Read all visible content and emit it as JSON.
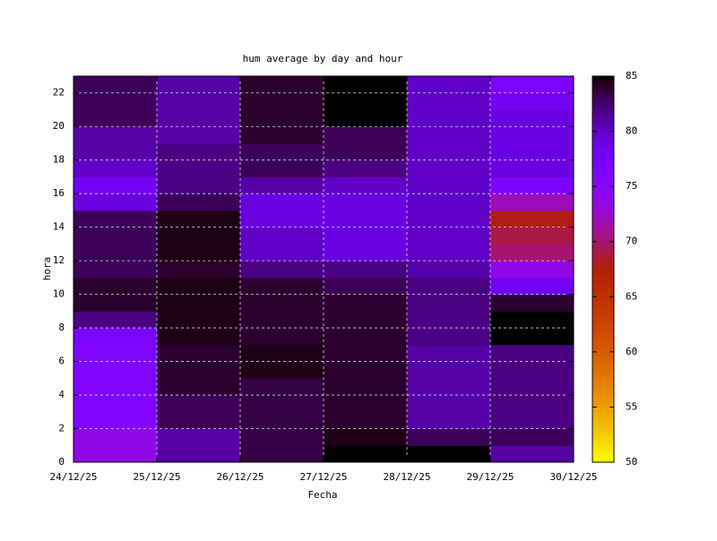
{
  "chart_data": {
    "type": "heatmap",
    "title": "hum average by day and hour",
    "xlabel": "Fecha",
    "ylabel": "hora",
    "xticks": [
      "24/12/25",
      "25/12/25",
      "26/12/25",
      "27/12/25",
      "28/12/25",
      "29/12/25",
      "30/12/25"
    ],
    "y": [
      0,
      1,
      2,
      3,
      4,
      5,
      6,
      7,
      8,
      9,
      10,
      11,
      12,
      13,
      14,
      15,
      16,
      17,
      18,
      19,
      20,
      21,
      22
    ],
    "ylim": [
      0,
      23
    ],
    "yticks": [
      0,
      2,
      4,
      6,
      8,
      10,
      12,
      14,
      16,
      18,
      20,
      22
    ],
    "z": [
      [
        74,
        74,
        76,
        76,
        76,
        76,
        76,
        77,
        82,
        84,
        84,
        83,
        83,
        83,
        83,
        79,
        78,
        80,
        81,
        81,
        83,
        83,
        83
      ],
      [
        81,
        81,
        83,
        83,
        84,
        84,
        84,
        84.5,
        84.5,
        84.5,
        84.5,
        84,
        84.5,
        84.5,
        84.5,
        83,
        82,
        82,
        82,
        81,
        81,
        81,
        81
      ],
      [
        83.5,
        83.5,
        83.5,
        83.5,
        83.5,
        84.5,
        84.5,
        84,
        84,
        84,
        84,
        82,
        80,
        80,
        79,
        79,
        81,
        83,
        83,
        84,
        84,
        84,
        84
      ],
      [
        85,
        84.5,
        84,
        84,
        84,
        84,
        84,
        84,
        84,
        84,
        83,
        82,
        79,
        79,
        79,
        79,
        80,
        82,
        83,
        83,
        85,
        85,
        85
      ],
      [
        85,
        83,
        81,
        81,
        81,
        81,
        81,
        82,
        82,
        82,
        82,
        81,
        80,
        80,
        80,
        80,
        80,
        80,
        80,
        80,
        80,
        80,
        80
      ],
      [
        81,
        83,
        82,
        82,
        82,
        82,
        82,
        85,
        85,
        84,
        78,
        74,
        70,
        69,
        68,
        72,
        77,
        79,
        79,
        79,
        79,
        78,
        77
      ]
    ],
    "clim": [
      50,
      85
    ],
    "cticks": [
      50,
      55,
      60,
      65,
      70,
      75,
      80,
      85
    ],
    "palette": "gnuplot-negative",
    "grid": true
  }
}
